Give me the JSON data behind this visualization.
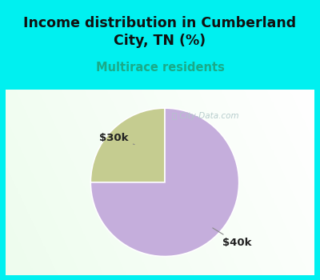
{
  "title": "Income distribution in Cumberland\nCity, TN (%)",
  "subtitle": "Multirace residents",
  "title_color": "#111111",
  "subtitle_color": "#1aaa88",
  "title_bg_color": "#00f0f0",
  "slices": [
    0.25,
    0.75
  ],
  "slice_colors": [
    "#c5cc90",
    "#c5aedc"
  ],
  "start_angle": 90,
  "watermark": "ⓘ City-Data.com",
  "watermark_color": "#b0c8c8",
  "label_30k": "$30k",
  "label_40k": "$40k",
  "label_color": "#222222",
  "border_color": "#00f0f0",
  "chart_inner_bg_top": "#e8f5e8",
  "chart_inner_bg_bot": "#d0ead8"
}
